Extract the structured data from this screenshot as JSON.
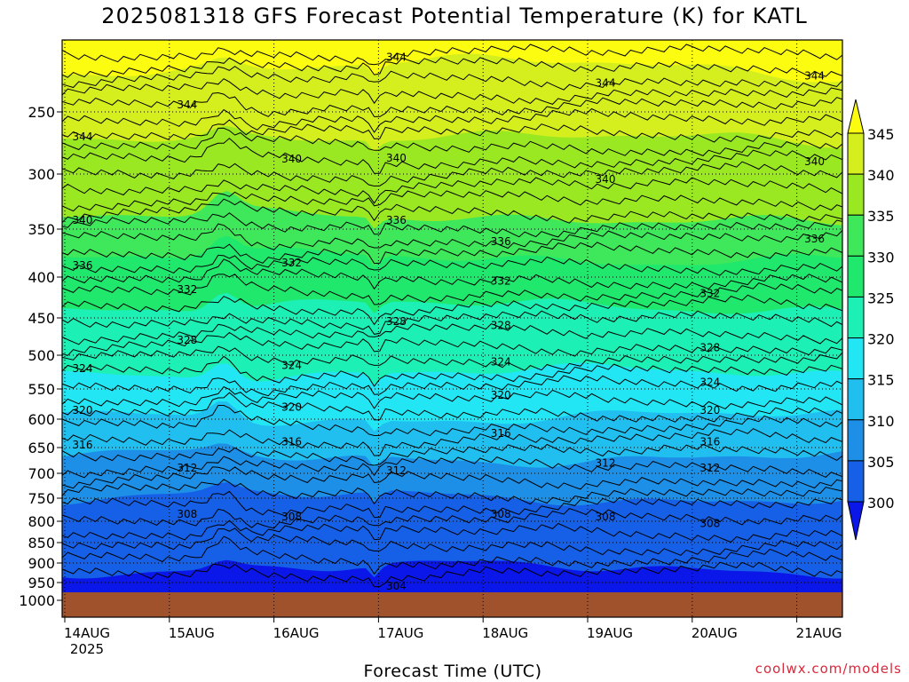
{
  "title": "2025081318 GFS Forecast Potential Temperature (K) for KATL",
  "credit": "coolwx.com/models",
  "chart_data": {
    "type": "contour",
    "title": "2025081318 GFS Forecast Potential Temperature (K) for KATL",
    "xlabel": "Forecast Time (UTC)",
    "ylabel": "",
    "x_ticks": [
      "14AUG",
      "15AUG",
      "16AUG",
      "17AUG",
      "18AUG",
      "19AUG",
      "20AUG",
      "21AUG"
    ],
    "x_year_label": "2025",
    "y_ticks": [
      250,
      300,
      350,
      400,
      450,
      500,
      550,
      600,
      650,
      700,
      750,
      800,
      850,
      900,
      950,
      1000
    ],
    "y_reversed": true,
    "grid": true,
    "colorbar": {
      "labels": [
        300,
        305,
        310,
        315,
        320,
        325,
        330,
        335,
        340,
        345
      ],
      "colors": [
        "#0b16e8",
        "#1560e6",
        "#1e8fe6",
        "#21bff0",
        "#22e6f4",
        "#1cf0b4",
        "#20e86c",
        "#3fe85a",
        "#9ae822",
        "#d4ee1e",
        "#fcfc10"
      ],
      "extend": "both",
      "placement": "right"
    },
    "contour_labels": [
      {
        "value": "344",
        "time": "14AUG",
        "pressure": 270
      },
      {
        "value": "344",
        "time": "15AUG",
        "pressure": 245
      },
      {
        "value": "344",
        "time": "17AUG",
        "pressure": 212
      },
      {
        "value": "344",
        "time": "19AUG",
        "pressure": 230
      },
      {
        "value": "344",
        "time": "21AUG",
        "pressure": 225
      },
      {
        "value": "340",
        "time": "14AUG",
        "pressure": 342
      },
      {
        "value": "340",
        "time": "16AUG",
        "pressure": 288
      },
      {
        "value": "340",
        "time": "17AUG",
        "pressure": 287
      },
      {
        "value": "340",
        "time": "19AUG",
        "pressure": 305
      },
      {
        "value": "340",
        "time": "21AUG",
        "pressure": 290
      },
      {
        "value": "336",
        "time": "14AUG",
        "pressure": 388
      },
      {
        "value": "336",
        "time": "17AUG",
        "pressure": 342
      },
      {
        "value": "336",
        "time": "18AUG",
        "pressure": 363
      },
      {
        "value": "336",
        "time": "21AUG",
        "pressure": 360
      },
      {
        "value": "332",
        "time": "15AUG",
        "pressure": 415
      },
      {
        "value": "332",
        "time": "16AUG",
        "pressure": 385
      },
      {
        "value": "332",
        "time": "18AUG",
        "pressure": 405
      },
      {
        "value": "332",
        "time": "20AUG",
        "pressure": 420
      },
      {
        "value": "328",
        "time": "15AUG",
        "pressure": 480
      },
      {
        "value": "328",
        "time": "17AUG",
        "pressure": 455
      },
      {
        "value": "328",
        "time": "18AUG",
        "pressure": 460
      },
      {
        "value": "328",
        "time": "20AUG",
        "pressure": 490
      },
      {
        "value": "324",
        "time": "14AUG",
        "pressure": 520
      },
      {
        "value": "324",
        "time": "16AUG",
        "pressure": 515
      },
      {
        "value": "324",
        "time": "18AUG",
        "pressure": 510
      },
      {
        "value": "324",
        "time": "20AUG",
        "pressure": 540
      },
      {
        "value": "320",
        "time": "14AUG",
        "pressure": 585
      },
      {
        "value": "320",
        "time": "16AUG",
        "pressure": 580
      },
      {
        "value": "320",
        "time": "18AUG",
        "pressure": 560
      },
      {
        "value": "320",
        "time": "20AUG",
        "pressure": 585
      },
      {
        "value": "316",
        "time": "14AUG",
        "pressure": 645
      },
      {
        "value": "316",
        "time": "16AUG",
        "pressure": 640
      },
      {
        "value": "316",
        "time": "18AUG",
        "pressure": 625
      },
      {
        "value": "316",
        "time": "20AUG",
        "pressure": 640
      },
      {
        "value": "312",
        "time": "15AUG",
        "pressure": 690
      },
      {
        "value": "312",
        "time": "17AUG",
        "pressure": 695
      },
      {
        "value": "312",
        "time": "19AUG",
        "pressure": 680
      },
      {
        "value": "312",
        "time": "20AUG",
        "pressure": 690
      },
      {
        "value": "308",
        "time": "15AUG",
        "pressure": 785
      },
      {
        "value": "308",
        "time": "16AUG",
        "pressure": 790
      },
      {
        "value": "308",
        "time": "18AUG",
        "pressure": 785
      },
      {
        "value": "308",
        "time": "19AUG",
        "pressure": 790
      },
      {
        "value": "308",
        "time": "20AUG",
        "pressure": 805
      },
      {
        "value": "304",
        "time": "17AUG",
        "pressure": 960
      }
    ],
    "surface_fill_color": "#a0522d"
  }
}
